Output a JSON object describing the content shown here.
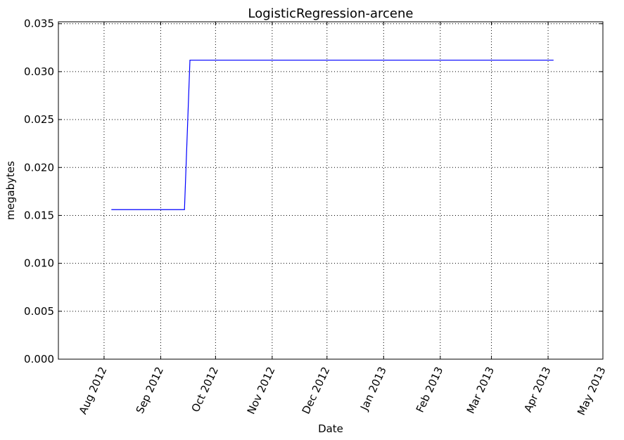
{
  "chart_data": {
    "type": "line",
    "title": "LogisticRegression-arcene",
    "xlabel": "Date",
    "ylabel": "megabytes",
    "x_axis_type": "date",
    "xlim": [
      "2012-07-07",
      "2013-05-01"
    ],
    "ylim": [
      0,
      0.0352
    ],
    "grid": true,
    "legend": "none",
    "series_color": "#0000ff",
    "x_ticks": [
      {
        "date": "2012-08-01",
        "label": "Aug 2012"
      },
      {
        "date": "2012-09-01",
        "label": "Sep 2012"
      },
      {
        "date": "2012-10-01",
        "label": "Oct 2012"
      },
      {
        "date": "2012-11-01",
        "label": "Nov 2012"
      },
      {
        "date": "2012-12-01",
        "label": "Dec 2012"
      },
      {
        "date": "2013-01-01",
        "label": "Jan 2013"
      },
      {
        "date": "2013-02-01",
        "label": "Feb 2013"
      },
      {
        "date": "2013-03-01",
        "label": "Mar 2013"
      },
      {
        "date": "2013-04-01",
        "label": "Apr 2013"
      },
      {
        "date": "2013-05-01",
        "label": "May 2013"
      }
    ],
    "y_ticks": [
      {
        "value": 0.0,
        "label": "0.000"
      },
      {
        "value": 0.005,
        "label": "0.005"
      },
      {
        "value": 0.01,
        "label": "0.010"
      },
      {
        "value": 0.015,
        "label": "0.015"
      },
      {
        "value": 0.02,
        "label": "0.020"
      },
      {
        "value": 0.025,
        "label": "0.025"
      },
      {
        "value": 0.03,
        "label": "0.030"
      },
      {
        "value": 0.035,
        "label": "0.035"
      }
    ],
    "series": [
      {
        "points": [
          {
            "x": "2012-08-05",
            "y": 0.0156
          },
          {
            "x": "2012-09-14",
            "y": 0.0156
          },
          {
            "x": "2012-09-17",
            "y": 0.0312
          },
          {
            "x": "2013-04-04",
            "y": 0.0312
          }
        ]
      }
    ]
  }
}
